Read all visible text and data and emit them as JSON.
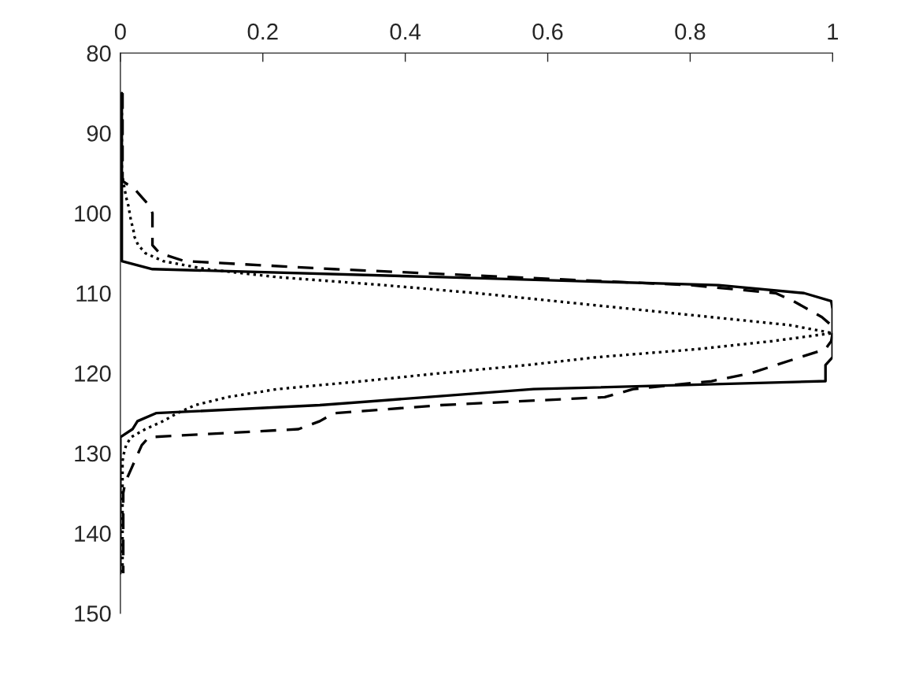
{
  "chart_data": {
    "type": "line",
    "xlim": [
      0,
      1
    ],
    "xticks": [
      0,
      0.2,
      0.4,
      0.6,
      0.8,
      1
    ],
    "ylim": [
      150,
      80
    ],
    "yticks": [
      80,
      90,
      100,
      110,
      120,
      130,
      140,
      150
    ],
    "grid": false,
    "legend": false,
    "series": [
      {
        "color": "#000000",
        "line_style": "solid",
        "values": [
          85,
          86,
          87,
          88,
          89,
          90,
          91,
          92,
          93,
          94,
          95,
          96,
          97,
          98,
          99,
          100,
          101,
          102,
          103,
          104,
          105,
          106,
          107,
          108,
          109,
          110,
          111,
          112,
          113,
          114,
          115,
          116,
          117,
          118,
          119,
          120,
          121,
          122,
          123,
          124,
          125,
          126,
          127,
          128,
          129,
          130,
          131,
          132,
          133,
          134,
          135,
          136,
          137,
          138,
          139,
          140,
          141,
          142,
          143,
          144,
          145
        ],
        "x": [
          0.002,
          0.002,
          0.002,
          0.002,
          0.002,
          0.002,
          0.002,
          0.002,
          0.002,
          0.002,
          0.002,
          0.002,
          0.002,
          0.002,
          0.002,
          0.002,
          0.002,
          0.002,
          0.002,
          0.002,
          0.002,
          0.002,
          0.045,
          0.45,
          0.84,
          0.96,
          0.998,
          1.0,
          1.0,
          1.0,
          1.0,
          1.0,
          1.0,
          1.0,
          0.99,
          0.99,
          0.99,
          0.58,
          0.43,
          0.28,
          0.05,
          0.024,
          0.017,
          0.0,
          0.0,
          0.0,
          0.0,
          0.0,
          0.0,
          0.0,
          0.0,
          0.0,
          0.0,
          0.0,
          0.0,
          0.0,
          0.0,
          0.0,
          0.0,
          0.0,
          0.0
        ]
      },
      {
        "color": "#000000",
        "line_style": "dashed",
        "values": [
          85,
          86,
          87,
          88,
          89,
          90,
          91,
          92,
          93,
          94,
          95,
          96,
          97,
          98,
          99,
          100,
          101,
          102,
          103,
          104,
          105,
          106,
          107,
          108,
          109,
          110,
          111,
          112,
          113,
          114,
          115,
          116,
          117,
          118,
          119,
          120,
          121,
          122,
          123,
          124,
          125,
          126,
          127,
          128,
          129,
          130,
          131,
          132,
          133,
          134,
          135,
          136,
          137,
          138,
          139,
          140,
          141,
          142,
          143,
          144,
          145
        ],
        "x": [
          0.003,
          0.003,
          0.003,
          0.003,
          0.003,
          0.003,
          0.003,
          0.003,
          0.003,
          0.003,
          0.003,
          0.003,
          0.02,
          0.03,
          0.04,
          0.045,
          0.045,
          0.045,
          0.045,
          0.045,
          0.055,
          0.09,
          0.3,
          0.55,
          0.8,
          0.92,
          0.945,
          0.965,
          0.985,
          0.998,
          1.0,
          0.998,
          0.99,
          0.955,
          0.92,
          0.885,
          0.83,
          0.72,
          0.68,
          0.45,
          0.3,
          0.28,
          0.25,
          0.04,
          0.03,
          0.025,
          0.02,
          0.015,
          0.01,
          0.006,
          0.004,
          0.004,
          0.004,
          0.004,
          0.004,
          0.004,
          0.004,
          0.004,
          0.004,
          0.004,
          0.004
        ]
      },
      {
        "color": "#000000",
        "line_style": "dotted",
        "values": [
          85,
          86,
          87,
          88,
          89,
          90,
          91,
          92,
          93,
          94,
          95,
          96,
          97,
          98,
          99,
          100,
          101,
          102,
          103,
          104,
          105,
          106,
          107,
          108,
          109,
          110,
          111,
          112,
          113,
          114,
          115,
          116,
          117,
          118,
          119,
          120,
          121,
          122,
          123,
          124,
          125,
          126,
          127,
          128,
          129,
          130,
          131,
          132,
          133,
          134,
          135,
          136,
          137,
          138,
          139,
          140,
          141,
          142,
          143,
          144,
          145
        ],
        "x": [
          0.002,
          0.002,
          0.002,
          0.002,
          0.002,
          0.002,
          0.002,
          0.002,
          0.002,
          0.002,
          0.002,
          0.004,
          0.006,
          0.008,
          0.011,
          0.013,
          0.015,
          0.018,
          0.02,
          0.025,
          0.035,
          0.06,
          0.12,
          0.22,
          0.37,
          0.5,
          0.61,
          0.72,
          0.83,
          0.94,
          1.0,
          0.915,
          0.81,
          0.67,
          0.57,
          0.45,
          0.34,
          0.22,
          0.15,
          0.105,
          0.08,
          0.06,
          0.035,
          0.015,
          0.008,
          0.005,
          0.003,
          0.003,
          0.003,
          0.003,
          0.003,
          0.003,
          0.003,
          0.003,
          0.003,
          0.003,
          0.003,
          0.003,
          0.003,
          0.003,
          0.003
        ]
      }
    ]
  }
}
